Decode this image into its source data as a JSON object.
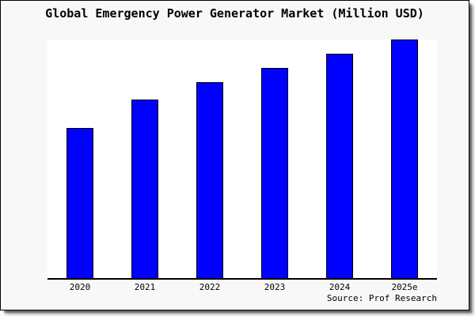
{
  "title": "Global Emergency Power Generator Market (Million USD)",
  "source": "Source: Prof Research",
  "colors": {
    "bar_fill": "#0000ff",
    "bar_border": "#000000",
    "panel_bg": "#f8f8f8",
    "plot_bg": "#ffffff",
    "axis": "#000000",
    "text": "#000000"
  },
  "chart_data": {
    "type": "bar",
    "title": "Global Emergency Power Generator Market (Million USD)",
    "categories": [
      "2020",
      "2021",
      "2022",
      "2023",
      "2024",
      "2025e"
    ],
    "values": [
      63,
      75,
      82,
      88,
      94,
      100
    ],
    "value_note": "y-axis unlabeled; values are relative bar heights as % of tallest (2025e) bar",
    "xlabel": "",
    "ylabel": "",
    "ylim": [
      0,
      100
    ],
    "grid": false,
    "legend": false,
    "y_axis_ticks_visible": false,
    "source": "Source: Prof Research"
  }
}
